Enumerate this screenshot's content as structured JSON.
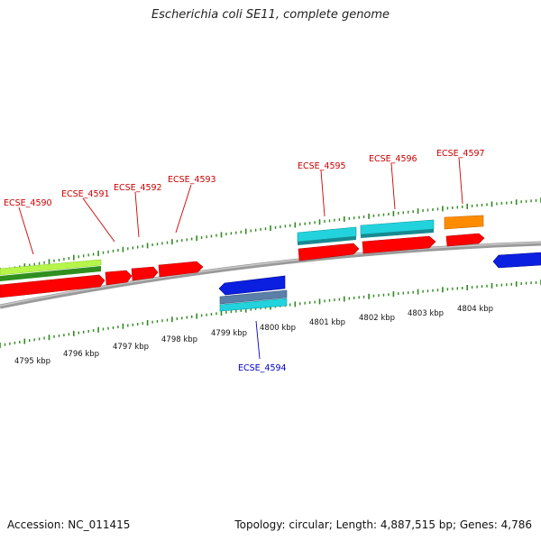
{
  "title": "Escherichia coli SE11, complete genome",
  "footer": {
    "accession": "Accession: NC_011415",
    "stats": "Topology: circular; Length: 4,887,515 bp; Genes: 4,786"
  },
  "colors": {
    "backbone": "#808080",
    "forward_tick": "#2e8b1e",
    "reverse_tick": "#2e8b1e",
    "red_gene": "#ff0000",
    "cyan_gene": "#22d3dd",
    "blue_gene": "#0a1fe0",
    "orange_gene": "#ff8c00",
    "green_feature": "#2f8f1f",
    "lime_feature": "#b6f64a",
    "steel_feature": "#5a7fa8",
    "label_red": "#cc0000",
    "label_blue": "#0000cc"
  },
  "kbp_labels": [
    "4795 kbp",
    "4796 kbp",
    "4797 kbp",
    "4798 kbp",
    "4799 kbp",
    "4800 kbp",
    "4801 kbp",
    "4802 kbp",
    "4803 kbp",
    "4804 kbp"
  ],
  "gene_labels": [
    {
      "name": "ECSE_4590",
      "strand": "forward"
    },
    {
      "name": "ECSE_4591",
      "strand": "forward"
    },
    {
      "name": "ECSE_4592",
      "strand": "forward"
    },
    {
      "name": "ECSE_4593",
      "strand": "forward"
    },
    {
      "name": "ECSE_4595",
      "strand": "forward"
    },
    {
      "name": "ECSE_4596",
      "strand": "forward"
    },
    {
      "name": "ECSE_4597",
      "strand": "forward"
    },
    {
      "name": "ECSE_4594",
      "strand": "reverse"
    }
  ]
}
